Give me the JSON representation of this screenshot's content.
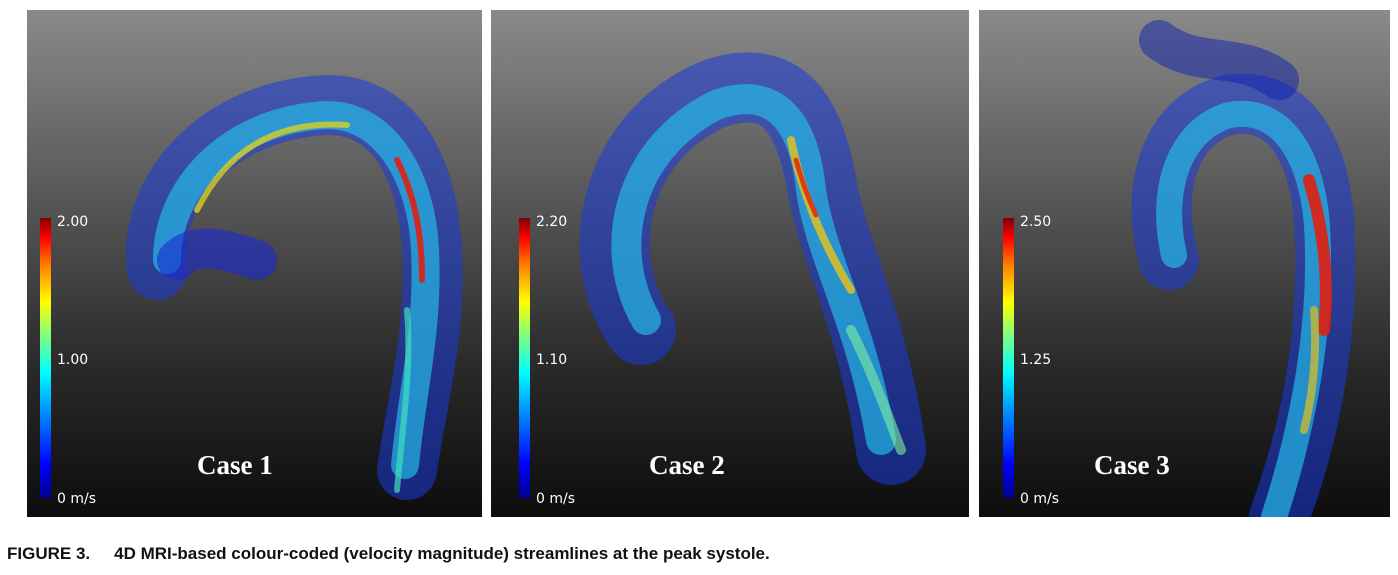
{
  "panels": [
    {
      "label": "Case 1",
      "scale": {
        "max": "2.00",
        "mid": "1.00",
        "min": "0 m/s"
      }
    },
    {
      "label": "Case 2",
      "scale": {
        "max": "2.20",
        "mid": "1.10",
        "min": "0 m/s"
      }
    },
    {
      "label": "Case 3",
      "scale": {
        "max": "2.50",
        "mid": "1.25",
        "min": "0 m/s"
      }
    }
  ],
  "caption": {
    "number": "FIGURE 3.",
    "text": "4D MRI-based colour-coded (velocity magnitude) streamlines at the peak systole."
  },
  "colors": {
    "stream_low": "#1030d0",
    "stream_mid": "#20c0e0",
    "stream_high": "#e03010"
  }
}
